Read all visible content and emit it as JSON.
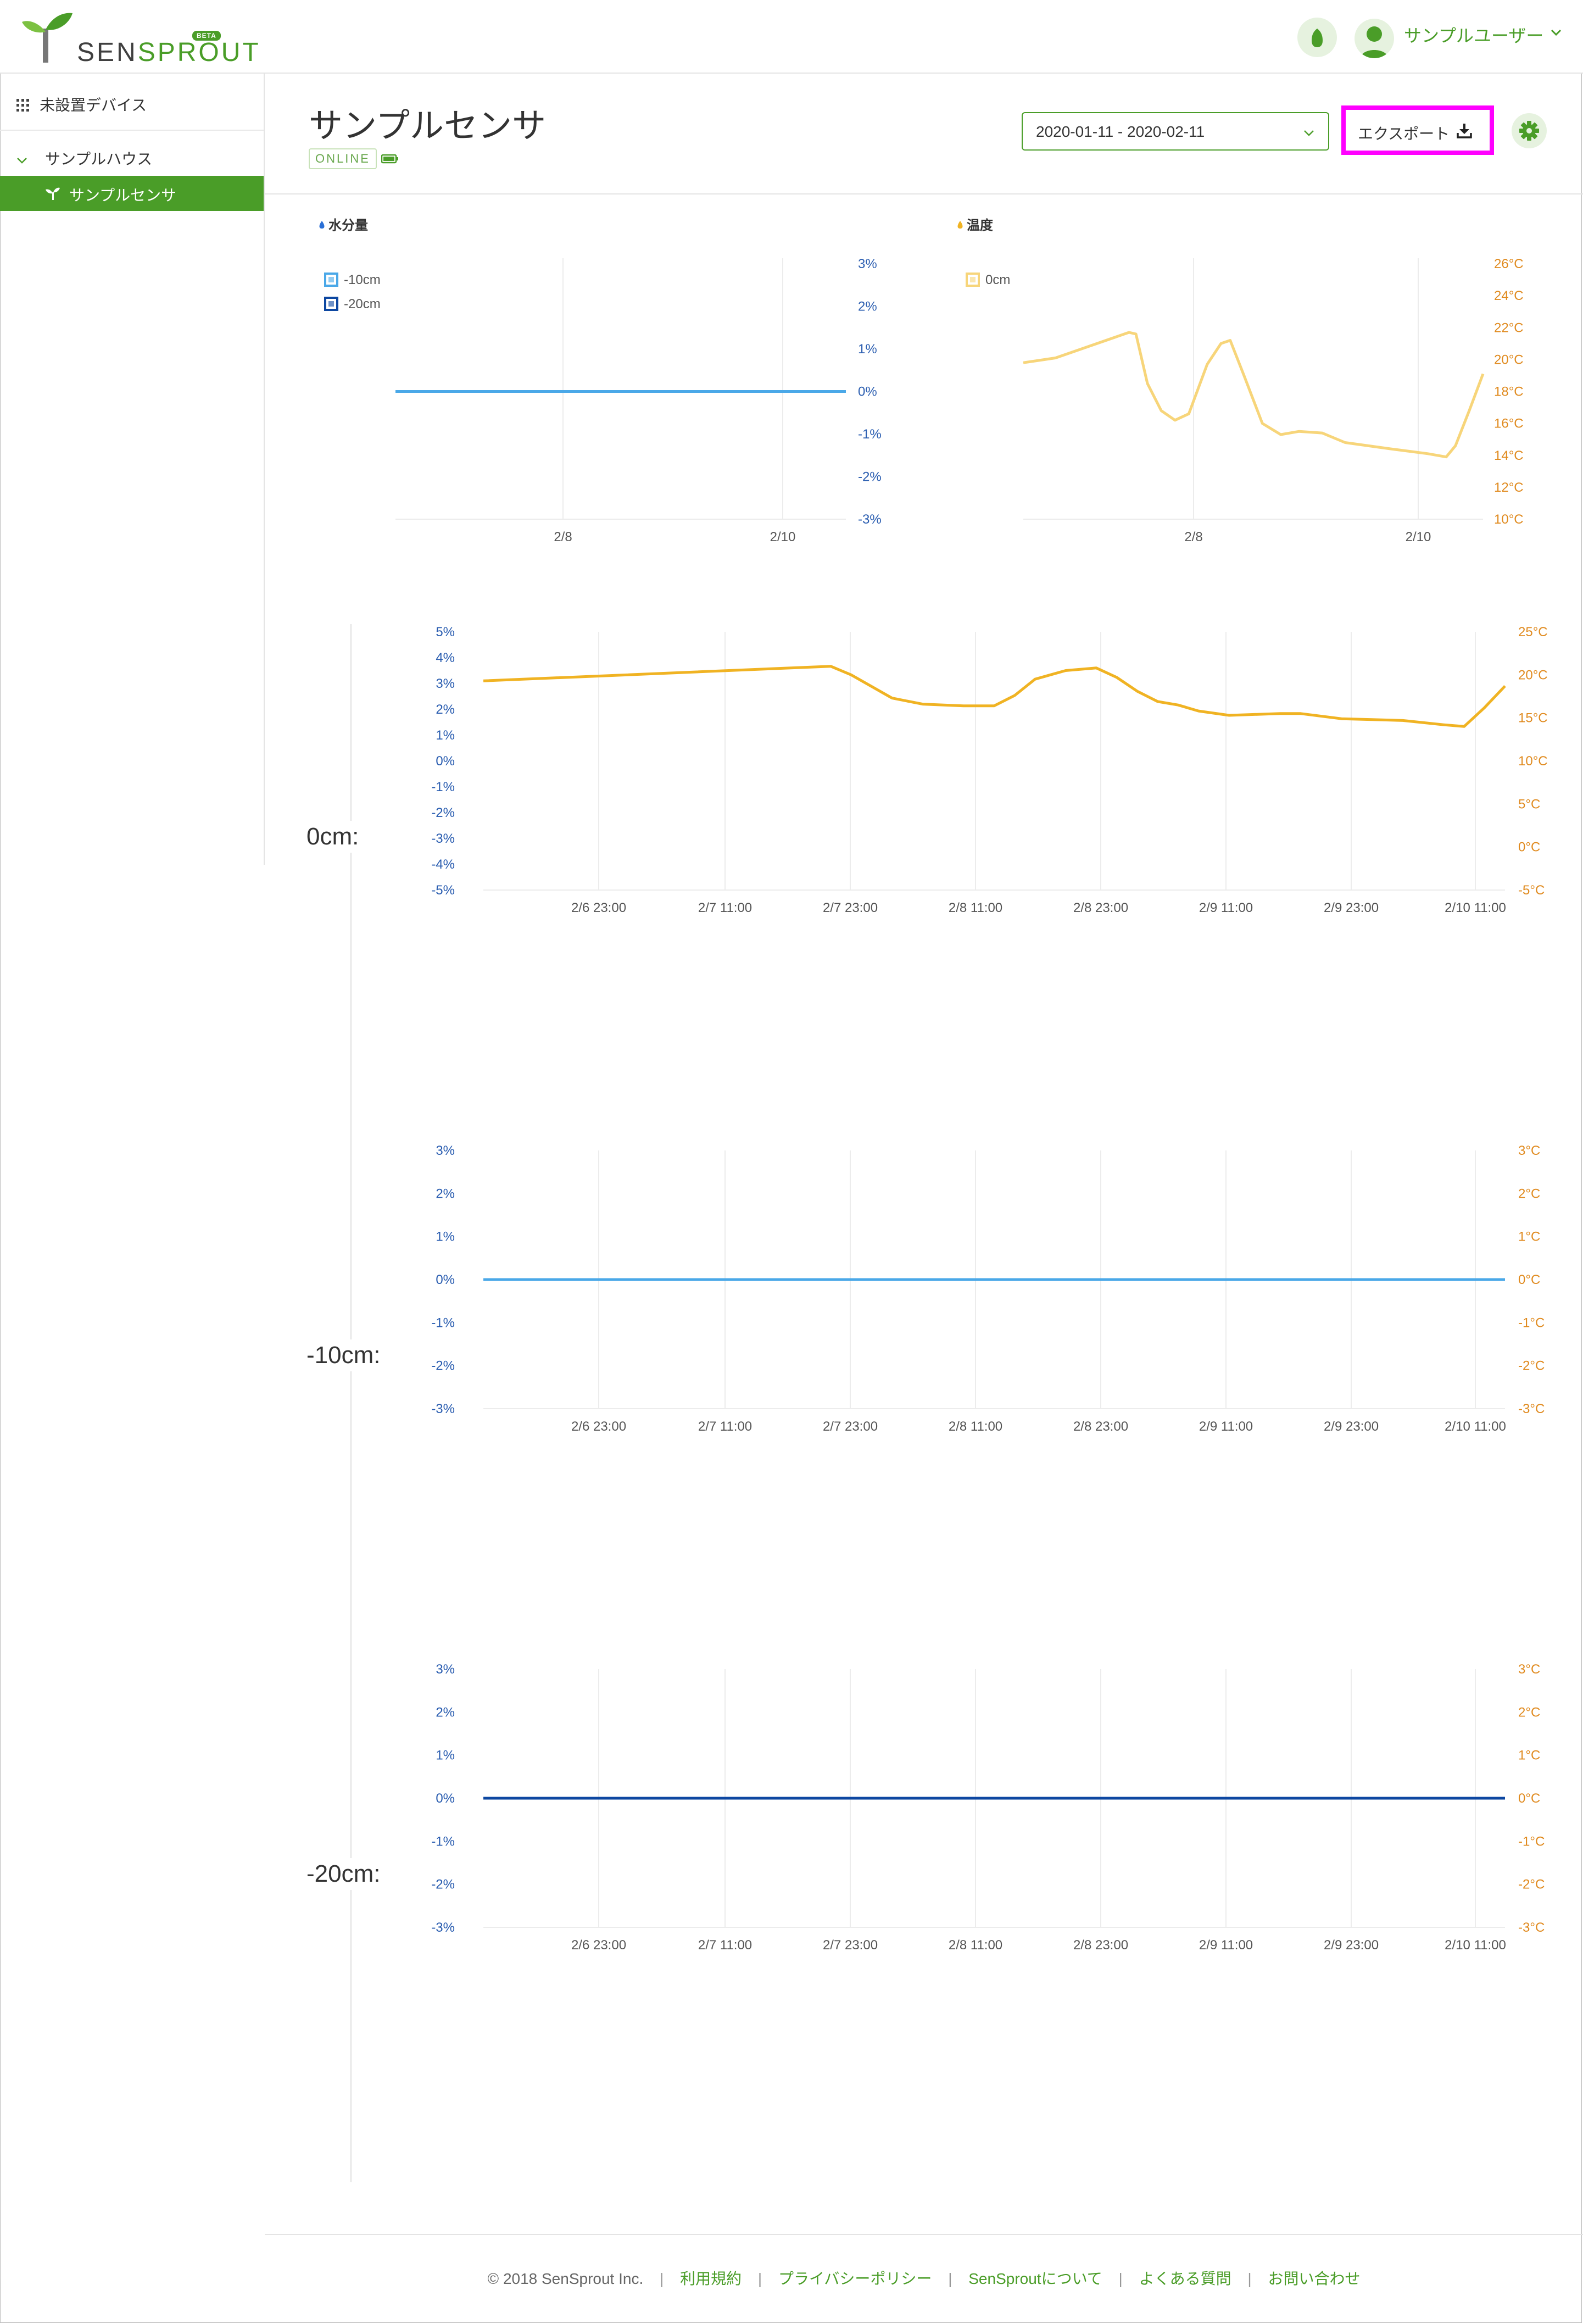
{
  "header": {
    "logo_text_a": "SEN",
    "logo_text_b": "SPROUT",
    "logo_badge": "BETA",
    "user_name": "サンプルユーザー"
  },
  "sidebar": {
    "unassigned_label": "未設置デバイス",
    "house_label": "サンプルハウス",
    "sensor_label": "サンプルセンサ"
  },
  "page": {
    "title": "サンプルセンサ",
    "status": "ONLINE",
    "date_range": "2020-01-11 - 2020-02-11",
    "export_label": "エクスポート"
  },
  "colors": {
    "brand_green": "#4a9d28",
    "moisture_10cm": "#4aa8e8",
    "moisture_20cm": "#0d47a1",
    "temp_0cm_light": "#f7d57a",
    "temp_0cm": "#f0b323",
    "highlight": "#ff00ff"
  },
  "chart_data": [
    {
      "id": "moisture-overview",
      "type": "line",
      "title": "水分量",
      "legend": [
        "-10cm",
        "-20cm"
      ],
      "x_ticks": [
        "2/8",
        "2/10"
      ],
      "y_ticks": [
        "3%",
        "2%",
        "1%",
        "0%",
        "-1%",
        "-2%",
        "-3%"
      ],
      "ylim": [
        -3,
        3
      ],
      "series": [
        {
          "name": "-10cm",
          "color": "#4aa8e8",
          "x": [
            0,
            1
          ],
          "values": [
            0,
            0
          ]
        }
      ]
    },
    {
      "id": "temperature-overview",
      "type": "line",
      "title": "温度",
      "legend": [
        "0cm"
      ],
      "x_ticks": [
        "2/8",
        "2/10"
      ],
      "y_ticks": [
        "26°C",
        "24°C",
        "22°C",
        "20°C",
        "18°C",
        "16°C",
        "14°C",
        "12°C",
        "10°C"
      ],
      "ylim": [
        10,
        26
      ],
      "series": [
        {
          "name": "0cm",
          "color": "#f7d57a",
          "x": [
            0,
            0.07,
            0.23,
            0.245,
            0.27,
            0.3,
            0.33,
            0.36,
            0.4,
            0.43,
            0.45,
            0.48,
            0.52,
            0.56,
            0.6,
            0.65,
            0.7,
            0.8,
            0.88,
            0.92,
            0.94,
            0.97,
            1.0
          ],
          "values": [
            19.8,
            20.1,
            21.7,
            21.6,
            18.5,
            16.8,
            16.2,
            16.6,
            19.7,
            21.0,
            21.2,
            19.0,
            16.0,
            15.3,
            15.5,
            15.4,
            14.8,
            14.4,
            14.1,
            13.9,
            14.6,
            16.8,
            19.1
          ]
        }
      ]
    },
    {
      "id": "depth-0cm",
      "type": "line",
      "depth_label": "0cm:",
      "x_ticks": [
        "2/6 23:00",
        "2/7 11:00",
        "2/7 23:00",
        "2/8 11:00",
        "2/8 23:00",
        "2/9 11:00",
        "2/9 23:00",
        "2/10 11:00"
      ],
      "y_ticks_left": [
        "5%",
        "4%",
        "3%",
        "2%",
        "1%",
        "0%",
        "-1%",
        "-2%",
        "-3%",
        "-4%",
        "-5%"
      ],
      "y_ticks_right": [
        "25°C",
        "20°C",
        "15°C",
        "10°C",
        "5°C",
        "0°C",
        "-5°C"
      ],
      "ylim_left": [
        -5,
        5
      ],
      "ylim_right": [
        -5,
        25
      ],
      "series": [
        {
          "name": "温度 0cm",
          "color": "#f0b323",
          "x": [
            0,
            0.34,
            0.36,
            0.4,
            0.43,
            0.47,
            0.5,
            0.52,
            0.54,
            0.57,
            0.6,
            0.62,
            0.64,
            0.66,
            0.68,
            0.7,
            0.73,
            0.78,
            0.8,
            0.84,
            0.87,
            0.9,
            0.94,
            0.96,
            0.98,
            1.0
          ],
          "values": [
            19.3,
            21.0,
            20.0,
            17.3,
            16.6,
            16.4,
            16.4,
            17.6,
            19.5,
            20.5,
            20.8,
            19.7,
            18.1,
            16.9,
            16.5,
            15.8,
            15.3,
            15.5,
            15.5,
            14.9,
            14.8,
            14.7,
            14.2,
            14.0,
            16.2,
            18.7
          ]
        }
      ]
    },
    {
      "id": "depth-10cm",
      "type": "line",
      "depth_label": "-10cm:",
      "x_ticks": [
        "2/6 23:00",
        "2/7 11:00",
        "2/7 23:00",
        "2/8 11:00",
        "2/8 23:00",
        "2/9 11:00",
        "2/9 23:00",
        "2/10 11:00"
      ],
      "y_ticks_left": [
        "3%",
        "2%",
        "1%",
        "0%",
        "-1%",
        "-2%",
        "-3%"
      ],
      "y_ticks_right": [
        "3°C",
        "2°C",
        "1°C",
        "0°C",
        "-1°C",
        "-2°C",
        "-3°C"
      ],
      "ylim_left": [
        -3,
        3
      ],
      "ylim_right": [
        -3,
        3
      ],
      "series": [
        {
          "name": "水分量 -10cm",
          "color": "#4aa8e8",
          "x": [
            0,
            1
          ],
          "values": [
            0,
            0
          ]
        }
      ]
    },
    {
      "id": "depth-20cm",
      "type": "line",
      "depth_label": "-20cm:",
      "x_ticks": [
        "2/6 23:00",
        "2/7 11:00",
        "2/7 23:00",
        "2/8 11:00",
        "2/8 23:00",
        "2/9 11:00",
        "2/9 23:00",
        "2/10 11:00"
      ],
      "y_ticks_left": [
        "3%",
        "2%",
        "1%",
        "0%",
        "-1%",
        "-2%",
        "-3%"
      ],
      "y_ticks_right": [
        "3°C",
        "2°C",
        "1°C",
        "0°C",
        "-1°C",
        "-2°C",
        "-3°C"
      ],
      "ylim_left": [
        -3,
        3
      ],
      "ylim_right": [
        -3,
        3
      ],
      "series": [
        {
          "name": "水分量 -20cm",
          "color": "#0d47a1",
          "x": [
            0,
            1
          ],
          "values": [
            0,
            0
          ]
        }
      ]
    }
  ],
  "footer": {
    "copyright": "© 2018 SenSprout Inc.",
    "links": [
      "利用規約",
      "プライバシーポリシー",
      "SenSproutについて",
      "よくある質問",
      "お問い合わせ"
    ]
  }
}
